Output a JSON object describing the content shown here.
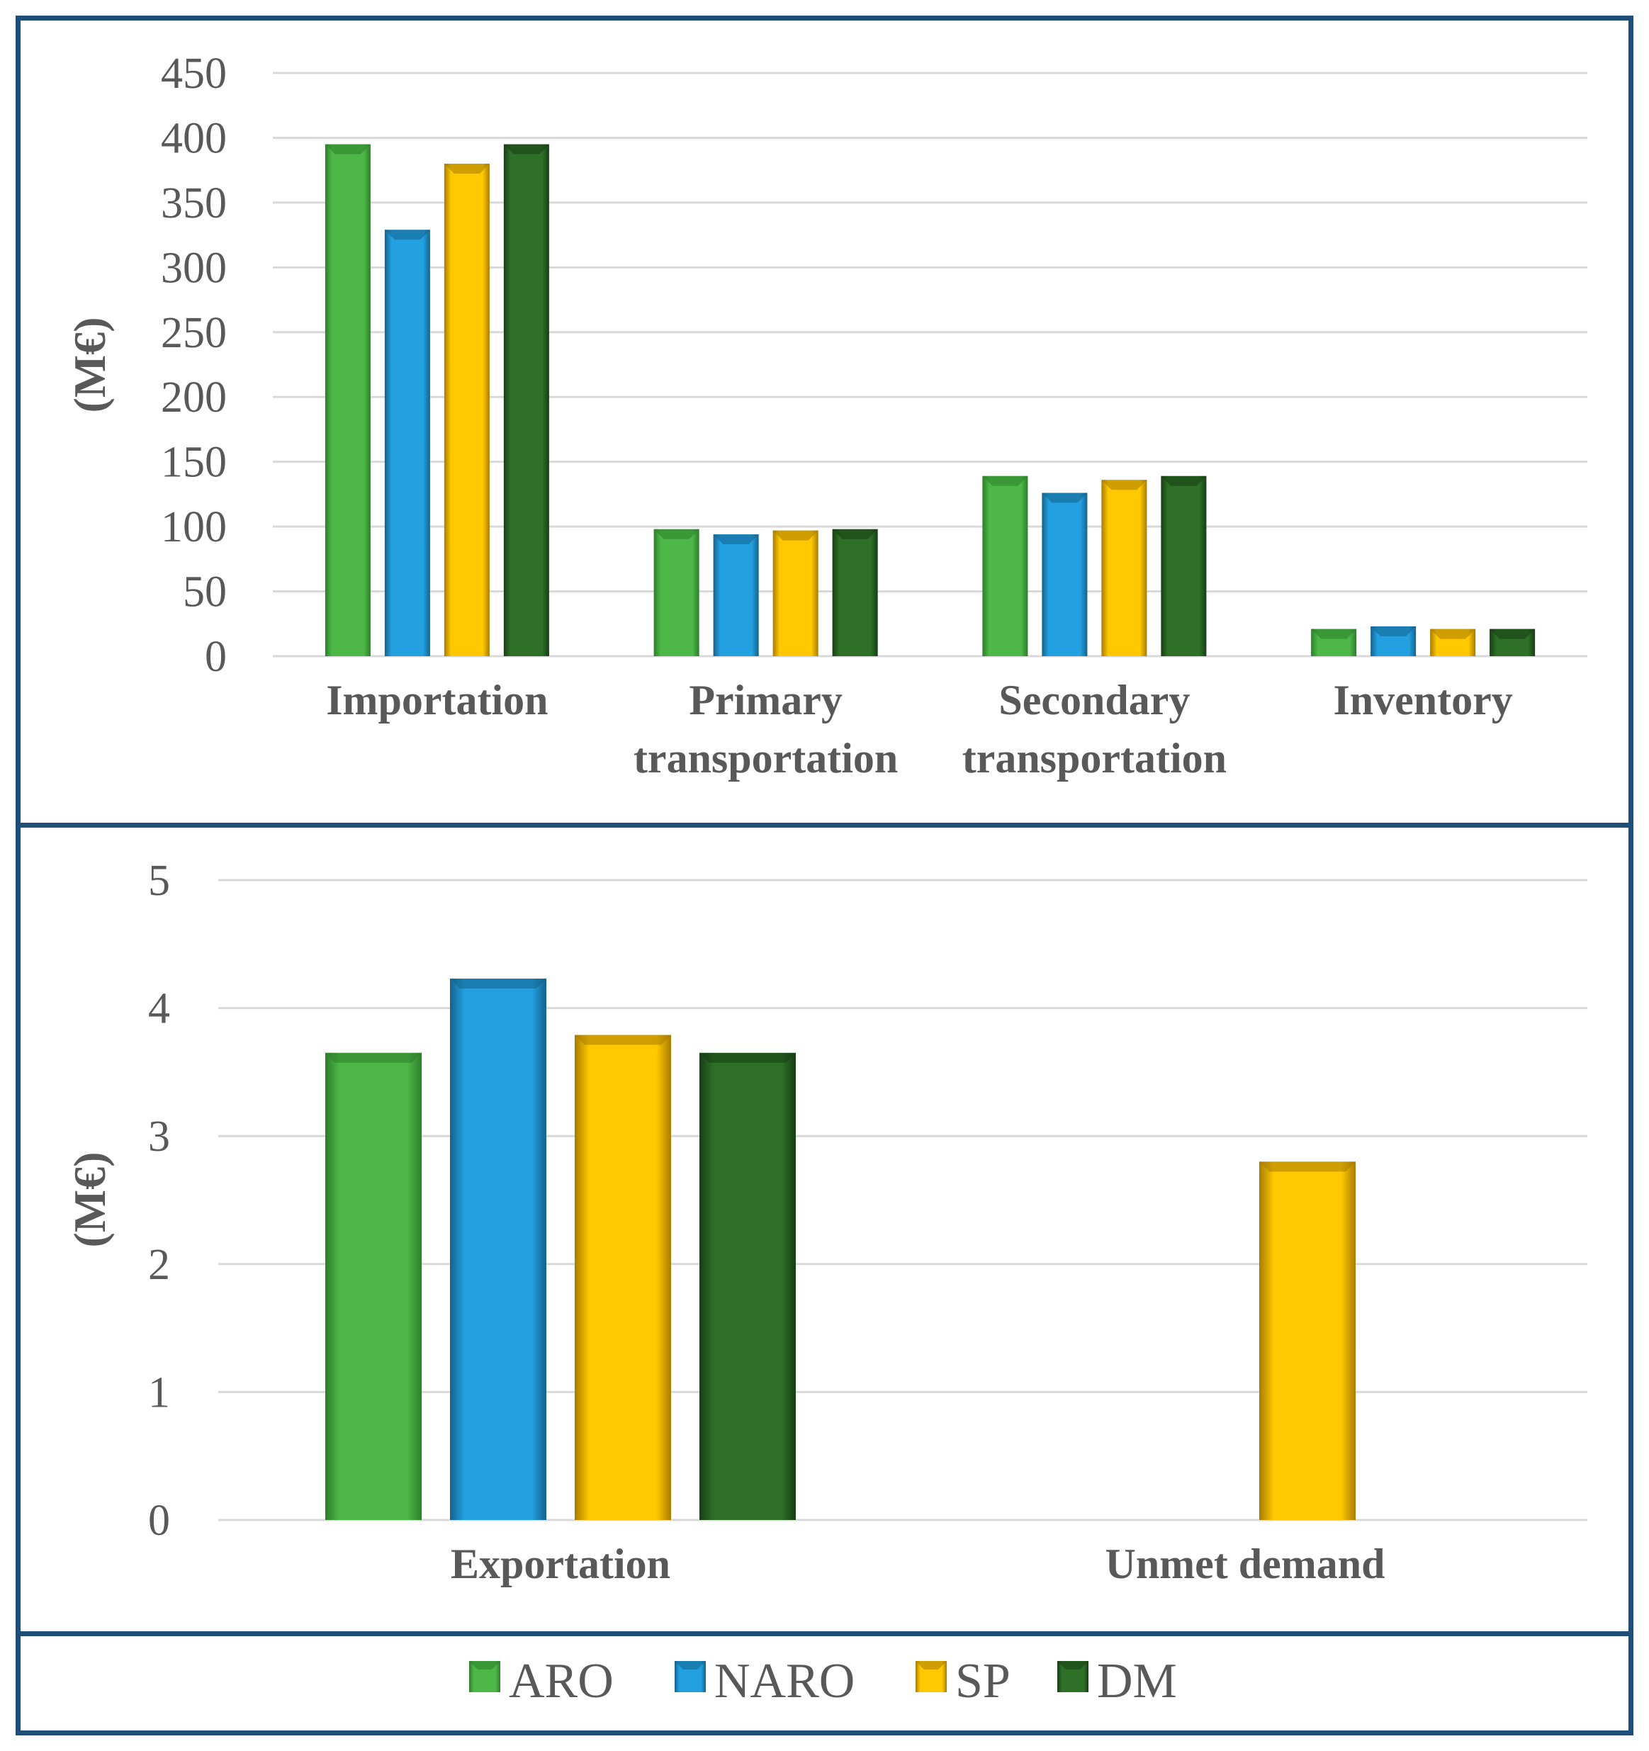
{
  "legend": {
    "entries": [
      {
        "name": "ARO",
        "color": "#4db848",
        "dark": "#2e7d2a"
      },
      {
        "name": "NARO",
        "color": "#22a0e0",
        "dark": "#15628c"
      },
      {
        "name": "SP",
        "color": "#ffc800",
        "dark": "#a87c00"
      },
      {
        "name": "DM",
        "color": "#2e7028",
        "dark": "#173d14"
      }
    ]
  },
  "chart_data": [
    {
      "type": "bar",
      "title": "",
      "xlabel": "",
      "ylabel": "(M€)",
      "ylim": [
        0,
        450
      ],
      "yticks": [
        0,
        50,
        100,
        150,
        200,
        250,
        300,
        350,
        400,
        450
      ],
      "categories": [
        "Importation",
        "Primary transportation",
        "Secondary transportation",
        "Inventory"
      ],
      "category_lines": [
        [
          "Importation"
        ],
        [
          "Primary",
          "transportation"
        ],
        [
          "Secondary",
          "transportation"
        ],
        [
          "Inventory"
        ]
      ],
      "series": [
        {
          "name": "ARO",
          "values": [
            395,
            98,
            139,
            21
          ]
        },
        {
          "name": "NARO",
          "values": [
            329,
            94,
            126,
            23
          ]
        },
        {
          "name": "SP",
          "values": [
            380,
            97,
            136,
            21
          ]
        },
        {
          "name": "DM",
          "values": [
            395,
            98,
            139,
            21
          ]
        }
      ]
    },
    {
      "type": "bar",
      "title": "",
      "xlabel": "",
      "ylabel": "(M€)",
      "ylim": [
        0,
        5
      ],
      "yticks": [
        0,
        1,
        2,
        3,
        4,
        5
      ],
      "categories": [
        "Exportation",
        "Unmet demand"
      ],
      "category_lines": [
        [
          "Exportation"
        ],
        [
          "Unmet demand"
        ]
      ],
      "series": [
        {
          "name": "ARO",
          "values": [
            3.65,
            0
          ]
        },
        {
          "name": "NARO",
          "values": [
            4.23,
            0
          ]
        },
        {
          "name": "SP",
          "values": [
            3.79,
            2.8
          ]
        },
        {
          "name": "DM",
          "values": [
            3.65,
            0
          ]
        }
      ]
    }
  ]
}
